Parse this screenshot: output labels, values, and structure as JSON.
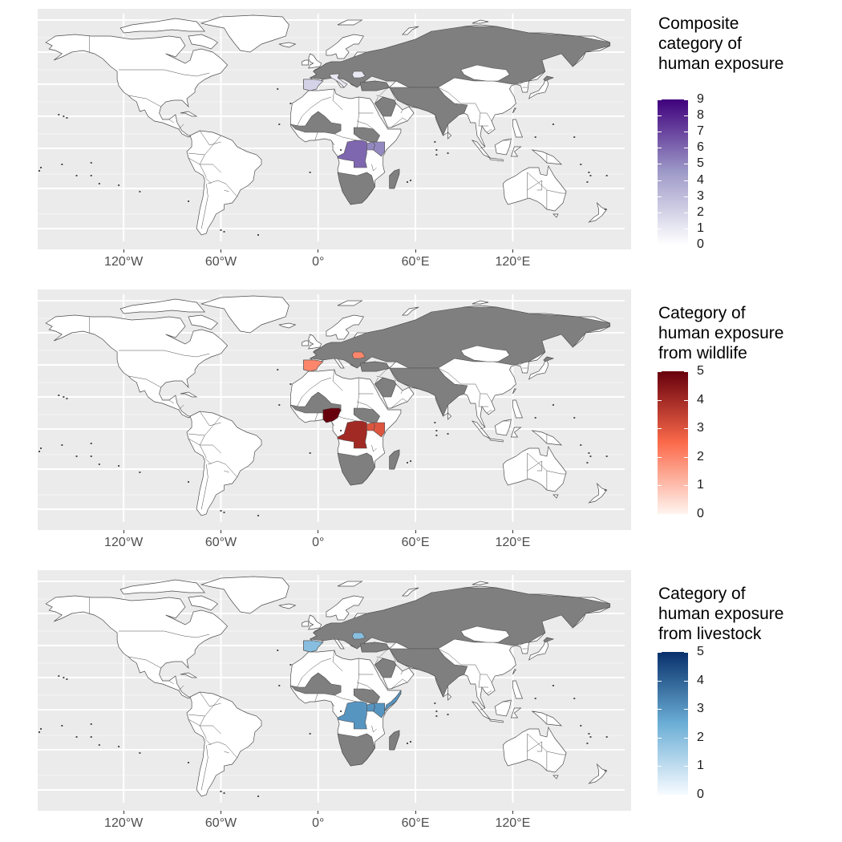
{
  "map": {
    "x_tick_labels": [
      "120°W",
      "60°W",
      "0°",
      "60°E",
      "120°E"
    ],
    "x_tick_lon": [
      -120,
      -60,
      0,
      60,
      120
    ],
    "lon_range": [
      -180,
      180
    ],
    "lat_range": [
      -58,
      84
    ],
    "background_color": "#ebebeb",
    "gridline_color": "#ffffff",
    "no_data_color": "#7f7f7f",
    "country_outline_color": "#4d4d4d",
    "land_default_color": "#ffffff"
  },
  "panels": [
    {
      "legend": {
        "title_lines": [
          "Composite",
          "category of",
          "human exposure"
        ],
        "labels": [
          "0",
          "1",
          "2",
          "3",
          "4",
          "5",
          "6",
          "7",
          "8",
          "9"
        ],
        "min": 0,
        "max": 9,
        "color_low": "#ffffff",
        "color_mid": "#9e9ac8",
        "color_high": "#3f007d"
      },
      "regions": [
        {
          "name": "spain",
          "value": 2
        },
        {
          "name": "italy",
          "value": 1
        },
        {
          "name": "romania",
          "value": 1
        },
        {
          "name": "dr-congo",
          "value": 6
        },
        {
          "name": "kenya",
          "value": 5
        },
        {
          "name": "uganda",
          "value": 5
        }
      ]
    },
    {
      "legend": {
        "title_lines": [
          "Category of",
          "human exposure",
          "from wildlife"
        ],
        "labels": [
          "0",
          "1",
          "2",
          "3",
          "4",
          "5"
        ],
        "min": 0,
        "max": 5,
        "color_low": "#fff5f0",
        "color_mid": "#fb6a4a",
        "color_high": "#67000d"
      },
      "regions": [
        {
          "name": "spain",
          "value": 2
        },
        {
          "name": "romania",
          "value": 2
        },
        {
          "name": "nigeria",
          "value": 5
        },
        {
          "name": "dr-congo",
          "value": 4
        },
        {
          "name": "kenya",
          "value": 3
        },
        {
          "name": "uganda",
          "value": 3
        }
      ]
    },
    {
      "legend": {
        "title_lines": [
          "Category of",
          "human exposure",
          "from livestock"
        ],
        "labels": [
          "0",
          "1",
          "2",
          "3",
          "4",
          "5"
        ],
        "min": 0,
        "max": 5,
        "color_low": "#f7fbff",
        "color_mid": "#6baed6",
        "color_high": "#08306b"
      },
      "regions": [
        {
          "name": "spain",
          "value": 2
        },
        {
          "name": "romania",
          "value": 2
        },
        {
          "name": "somalia",
          "value": 3
        },
        {
          "name": "dr-congo",
          "value": 3
        },
        {
          "name": "kenya",
          "value": 3
        },
        {
          "name": "uganda",
          "value": 3
        }
      ]
    }
  ]
}
